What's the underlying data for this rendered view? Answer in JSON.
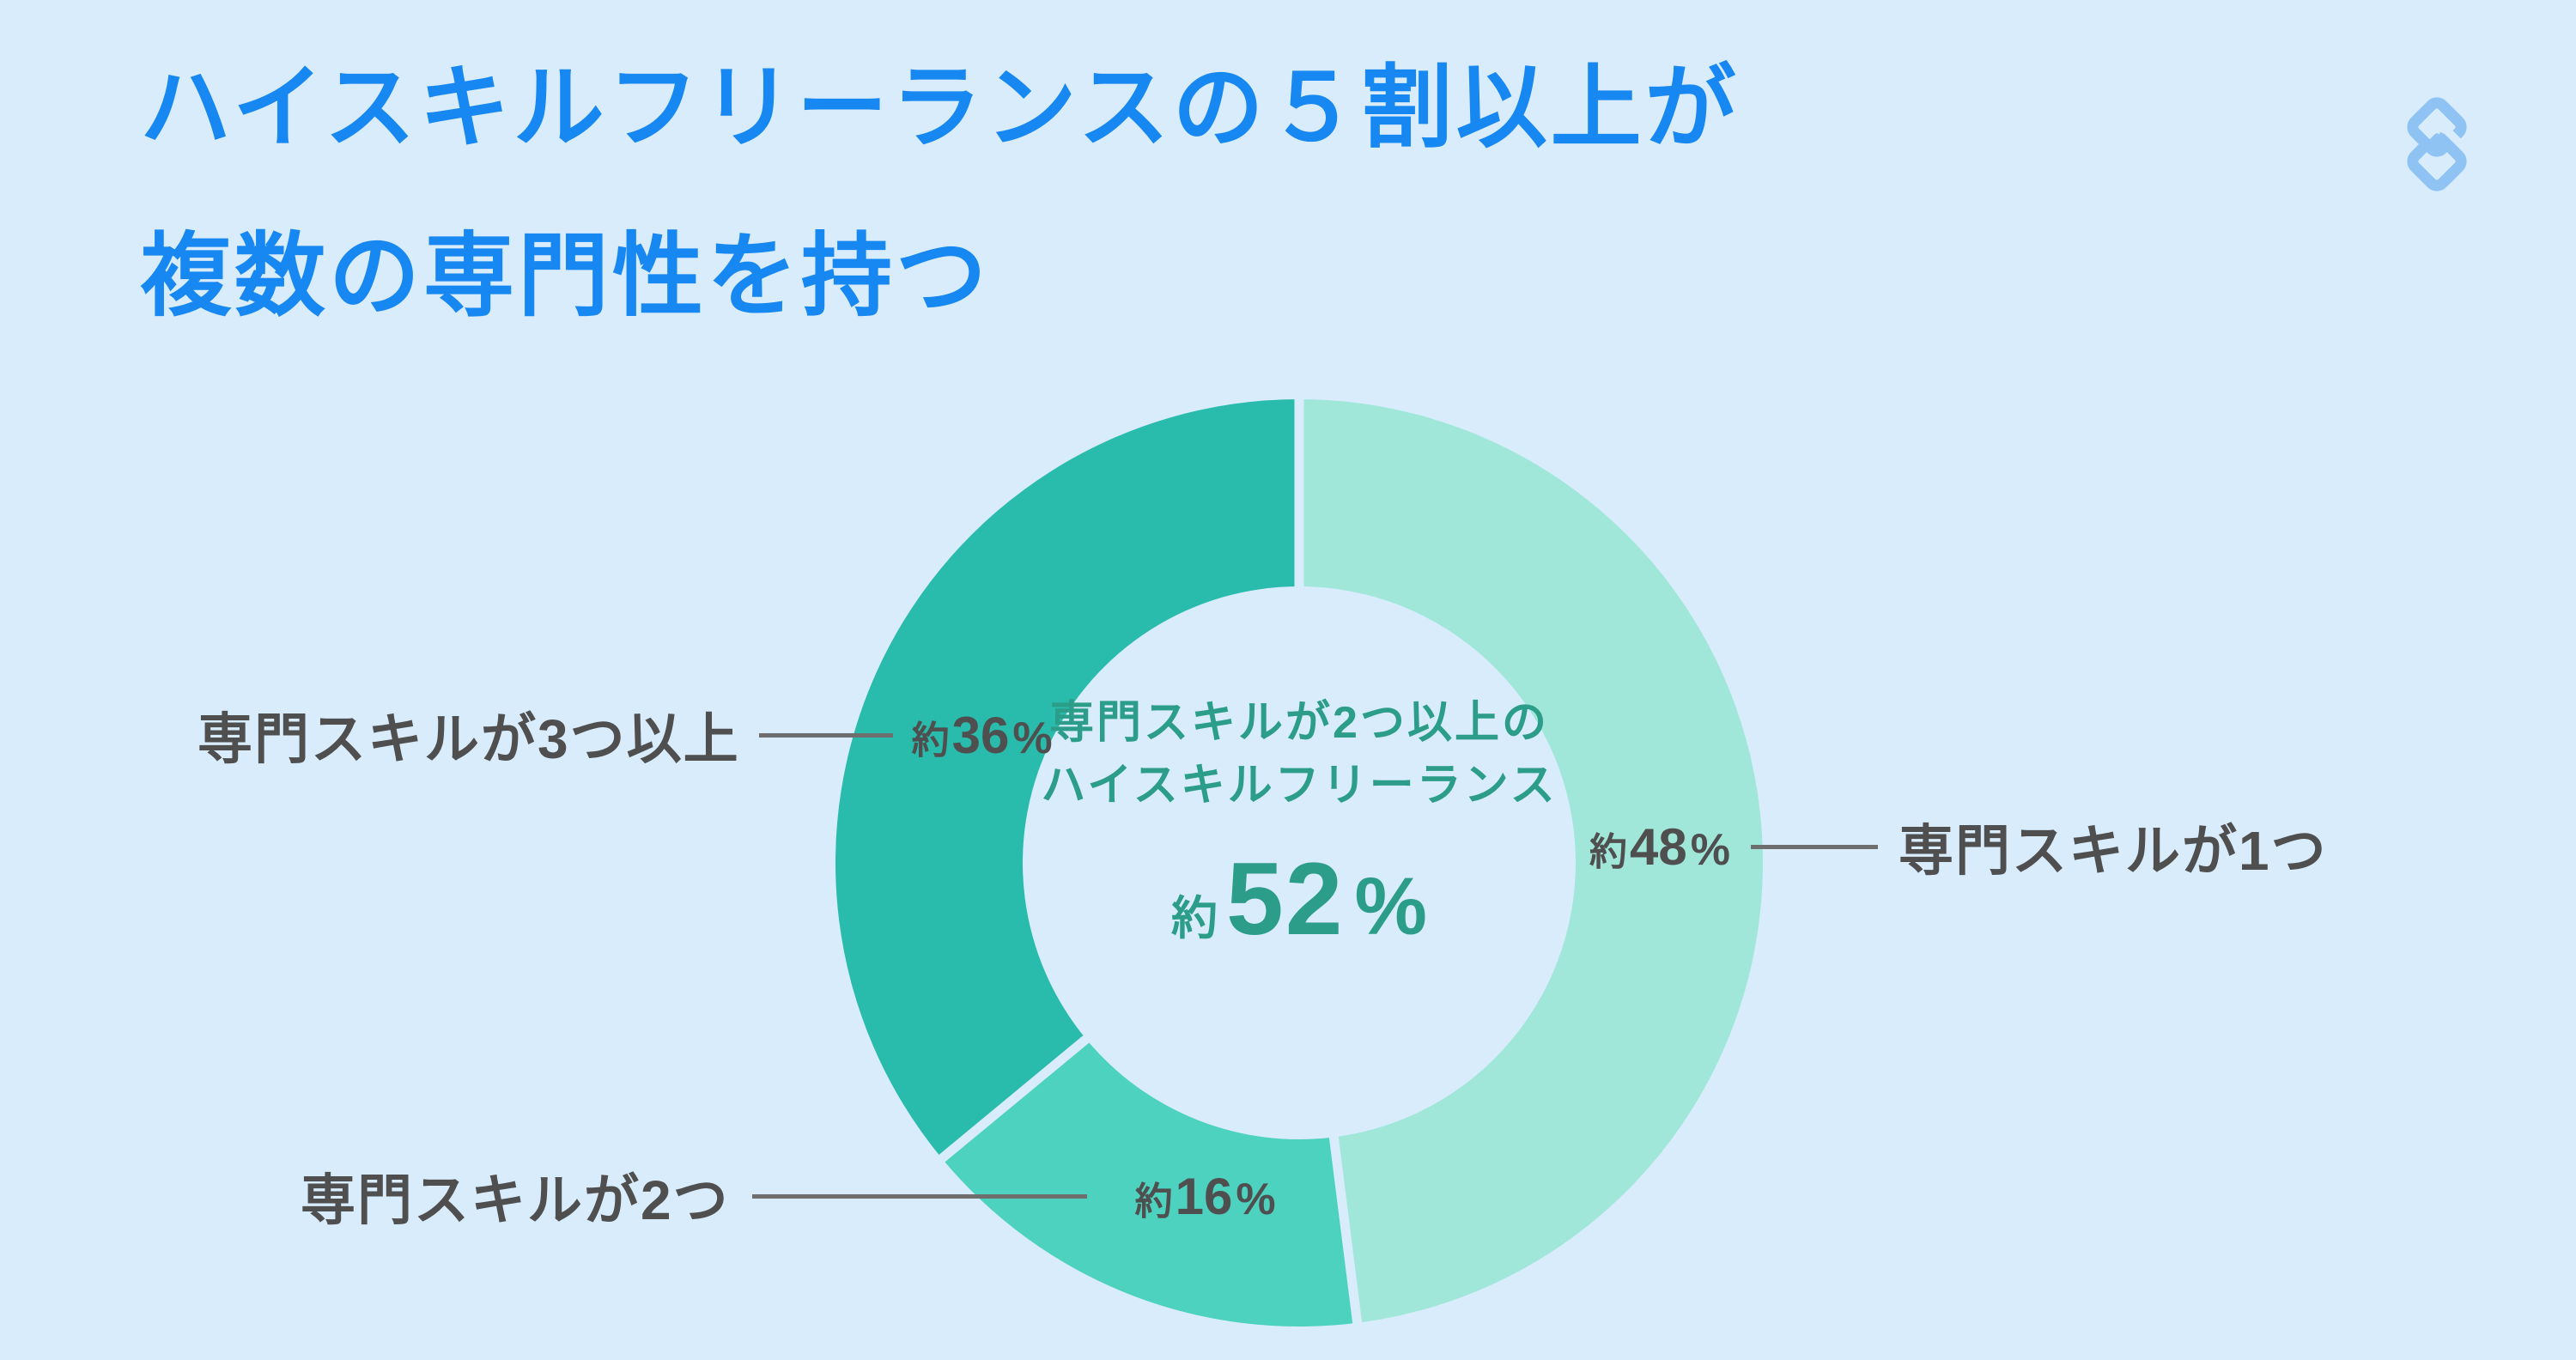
{
  "page": {
    "background_color": "#D9ECFC",
    "title": {
      "line1": "ハイスキルフリーランスの５割以上が",
      "line2": "複数の専門性を持つ",
      "color": "#1787F1"
    },
    "logo": {
      "icon": "interlocked-diamonds-monogram",
      "color": "#8FC3F4"
    }
  },
  "chart_data": {
    "type": "pie",
    "variant": "donut",
    "title": "ハイスキルフリーランスの５割以上が複数の専門性を持つ",
    "direction": "clockwise",
    "start_angle_deg": 0,
    "legend_position": "none",
    "categories": [
      "専門スキルが1つ",
      "専門スキルが2つ",
      "専門スキルが3つ以上"
    ],
    "values": [
      48,
      16,
      36
    ],
    "unit": "%",
    "approx_prefix": "約",
    "segments": [
      {
        "label": "専門スキルが1つ",
        "prefix": "約",
        "value": 48,
        "unit": "%",
        "color": "#A0E7DA"
      },
      {
        "label": "専門スキルが2つ",
        "prefix": "約",
        "value": 16,
        "unit": "%",
        "color": "#4ED2C0"
      },
      {
        "label": "専門スキルが3つ以上",
        "prefix": "約",
        "value": 36,
        "unit": "%",
        "color": "#29BBAC"
      }
    ],
    "center_label": {
      "line1": "専門スキルが2つ以上の",
      "line2": "ハイスキルフリーランス",
      "prefix": "約",
      "value": "52",
      "unit": "%",
      "color": "#2B9D88"
    },
    "ring": {
      "outer_radius": 540,
      "inner_radius": 322,
      "gap_width": 11,
      "gap_color": "#D9ECFC"
    },
    "label_text_color": "#4F4F4F",
    "connector_color": "#6E6E6E"
  }
}
